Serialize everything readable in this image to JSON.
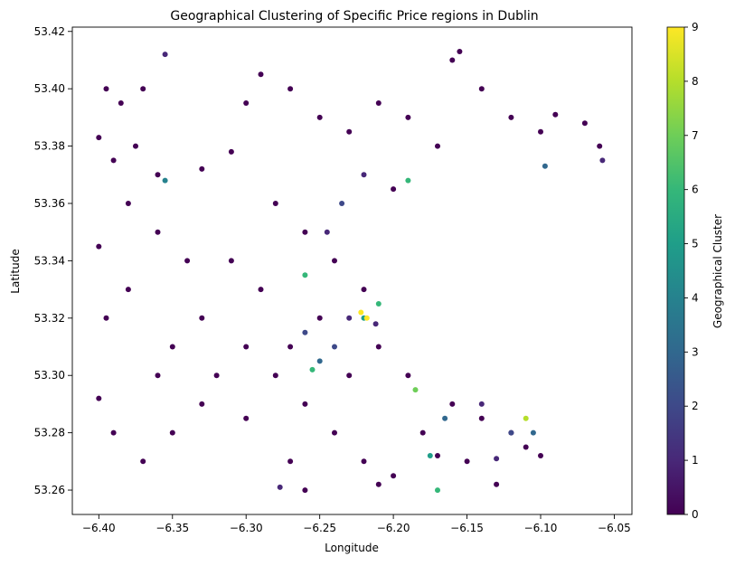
{
  "chart_data": {
    "type": "scatter",
    "title": "Geographical Clustering of Specific Price regions in Dublin",
    "xlabel": "Longitude",
    "ylabel": "Latitude",
    "xlim": [
      -6.418,
      -6.038
    ],
    "ylim": [
      53.2515,
      53.4215
    ],
    "xticks": [
      -6.4,
      -6.35,
      -6.3,
      -6.25,
      -6.2,
      -6.15,
      -6.1,
      -6.05
    ],
    "xtick_labels": [
      "−6.40",
      "−6.35",
      "−6.30",
      "−6.25",
      "−6.20",
      "−6.15",
      "−6.10",
      "−6.05"
    ],
    "yticks": [
      53.26,
      53.28,
      53.3,
      53.32,
      53.34,
      53.36,
      53.38,
      53.4,
      53.42
    ],
    "ytick_labels": [
      "53.26",
      "53.28",
      "53.30",
      "53.32",
      "53.34",
      "53.36",
      "53.38",
      "53.40",
      "53.42"
    ],
    "colorbar": {
      "label": "Geographical Cluster",
      "min": 0,
      "max": 9,
      "ticks": [
        "0",
        "1",
        "2",
        "3",
        "4",
        "5",
        "6",
        "7",
        "8",
        "9"
      ],
      "colormap": "viridis",
      "stops": [
        "#440154",
        "#482878",
        "#3e4989",
        "#31688e",
        "#26828e",
        "#1f9e89",
        "#35b779",
        "#6ece58",
        "#b5de2b",
        "#fde725"
      ]
    },
    "grid": false,
    "legend": "none",
    "points": [
      [
        -6.395,
        53.4
      ],
      [
        -6.385,
        53.395
      ],
      [
        -6.37,
        53.4
      ],
      [
        -6.355,
        53.412
      ],
      [
        -6.375,
        53.38
      ],
      [
        -6.39,
        53.375
      ],
      [
        -6.4,
        53.383
      ],
      [
        -6.36,
        53.37
      ],
      [
        -6.355,
        53.368
      ],
      [
        -6.33,
        53.372
      ],
      [
        -6.31,
        53.378
      ],
      [
        -6.3,
        53.395
      ],
      [
        -6.29,
        53.405
      ],
      [
        -6.27,
        53.4
      ],
      [
        -6.25,
        53.39
      ],
      [
        -6.23,
        53.385
      ],
      [
        -6.21,
        53.395
      ],
      [
        -6.19,
        53.39
      ],
      [
        -6.17,
        53.38
      ],
      [
        -6.16,
        53.41
      ],
      [
        -6.155,
        53.413
      ],
      [
        -6.14,
        53.4
      ],
      [
        -6.12,
        53.39
      ],
      [
        -6.1,
        53.385
      ],
      [
        -6.09,
        53.391
      ],
      [
        -6.07,
        53.388
      ],
      [
        -6.06,
        53.38
      ],
      [
        -6.058,
        53.375
      ],
      [
        -6.097,
        53.373
      ],
      [
        -6.28,
        53.36
      ],
      [
        -6.26,
        53.35
      ],
      [
        -6.24,
        53.34
      ],
      [
        -6.22,
        53.33
      ],
      [
        -6.25,
        53.32
      ],
      [
        -6.27,
        53.31
      ],
      [
        -6.29,
        53.33
      ],
      [
        -6.31,
        53.34
      ],
      [
        -6.33,
        53.32
      ],
      [
        -6.35,
        53.31
      ],
      [
        -6.38,
        53.33
      ],
      [
        -6.4,
        53.345
      ],
      [
        -6.395,
        53.32
      ],
      [
        -6.38,
        53.36
      ],
      [
        -6.36,
        53.35
      ],
      [
        -6.34,
        53.34
      ],
      [
        -6.3,
        53.31
      ],
      [
        -6.28,
        53.3
      ],
      [
        -6.26,
        53.29
      ],
      [
        -6.24,
        53.28
      ],
      [
        -6.22,
        53.27
      ],
      [
        -6.2,
        53.265
      ],
      [
        -6.21,
        53.262
      ],
      [
        -6.18,
        53.28
      ],
      [
        -6.16,
        53.29
      ],
      [
        -6.14,
        53.285
      ],
      [
        -6.12,
        53.28
      ],
      [
        -6.11,
        53.275
      ],
      [
        -6.1,
        53.272
      ],
      [
        -6.13,
        53.262
      ],
      [
        -6.15,
        53.27
      ],
      [
        -6.17,
        53.272
      ],
      [
        -6.19,
        53.3
      ],
      [
        -6.21,
        53.31
      ],
      [
        -6.23,
        53.3
      ],
      [
        -6.33,
        53.29
      ],
      [
        -6.35,
        53.28
      ],
      [
        -6.37,
        53.27
      ],
      [
        -6.39,
        53.28
      ],
      [
        -6.4,
        53.292
      ],
      [
        -6.36,
        53.3
      ],
      [
        -6.32,
        53.3
      ],
      [
        -6.3,
        53.285
      ],
      [
        -6.27,
        53.27
      ],
      [
        -6.26,
        53.26
      ],
      [
        -6.277,
        53.261
      ],
      [
        -6.245,
        53.35
      ],
      [
        -6.235,
        53.36
      ],
      [
        -6.22,
        53.37
      ],
      [
        -6.2,
        53.365
      ],
      [
        -6.19,
        53.368
      ],
      [
        -6.24,
        53.31
      ],
      [
        -6.23,
        53.32
      ],
      [
        -6.26,
        53.315
      ],
      [
        -6.25,
        53.305
      ],
      [
        -6.21,
        53.325
      ],
      [
        -6.22,
        53.32
      ],
      [
        -6.26,
        53.335
      ],
      [
        -6.255,
        53.302
      ],
      [
        -6.17,
        53.26
      ],
      [
        -6.11,
        53.285
      ],
      [
        -6.12,
        53.28
      ],
      [
        -6.14,
        53.29
      ],
      [
        -6.105,
        53.28
      ],
      [
        -6.13,
        53.271
      ],
      [
        -6.185,
        53.295
      ],
      [
        -6.165,
        53.285
      ],
      [
        -6.175,
        53.272
      ],
      [
        -6.222,
        53.322
      ],
      [
        -6.218,
        53.32
      ],
      [
        -6.212,
        53.318
      ]
    ],
    "clusters": [
      0,
      0,
      0,
      1,
      0,
      0,
      0,
      0,
      4,
      0,
      0,
      0,
      0,
      0,
      0,
      0,
      0,
      0,
      0,
      0,
      0,
      0,
      0,
      0,
      0,
      0,
      0,
      1,
      3,
      0,
      0,
      0,
      0,
      0,
      0,
      0,
      0,
      0,
      0,
      0,
      0,
      0,
      0,
      0,
      0,
      0,
      0,
      0,
      0,
      0,
      0,
      0,
      0,
      0,
      0,
      0,
      0,
      0,
      0,
      0,
      0,
      0,
      0,
      0,
      0,
      0,
      0,
      0,
      0,
      0,
      0,
      0,
      0,
      0,
      1,
      1,
      2,
      1,
      0,
      6,
      2,
      1,
      2,
      3,
      6,
      5,
      6,
      6,
      6,
      8,
      2,
      1,
      3,
      1,
      7,
      3,
      5,
      9,
      9,
      1
    ]
  }
}
